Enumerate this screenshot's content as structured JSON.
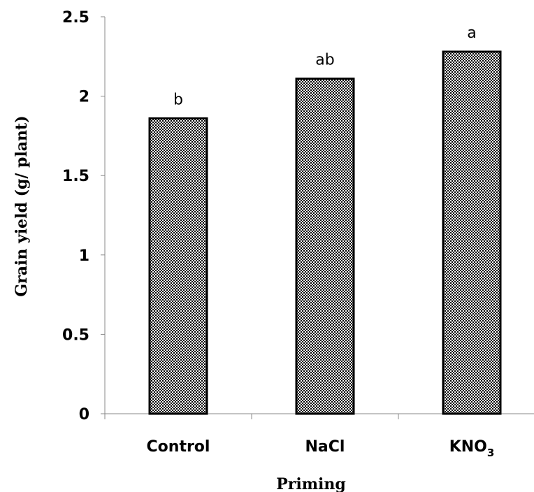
{
  "chart_data": {
    "type": "bar",
    "categories": [
      "Control",
      "NaCl",
      "KNO3"
    ],
    "category_display": [
      {
        "base": "Control",
        "sub": ""
      },
      {
        "base": "NaCl",
        "sub": ""
      },
      {
        "base": "KNO",
        "sub": "3"
      }
    ],
    "values": [
      1.86,
      2.11,
      2.28
    ],
    "significance_labels": [
      "b",
      "ab",
      "a"
    ],
    "xlabel": "Priming",
    "ylabel": "Grain yield  (g/ plant)",
    "ylim": [
      0,
      2.5
    ],
    "yticks": [
      "0",
      "0.5",
      "1",
      "1.5",
      "2",
      "2.5"
    ],
    "grid": false,
    "legend": "none",
    "bar_fill": "dotted-pattern",
    "colors": {
      "bar_border": "#000000",
      "bar_pattern": "#000000",
      "background": "#ffffff",
      "axis": "#888888"
    }
  }
}
